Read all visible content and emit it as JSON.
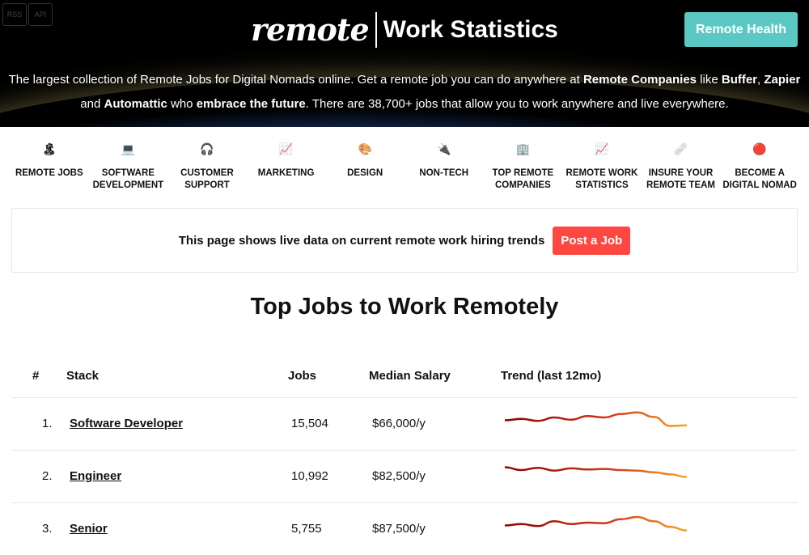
{
  "header": {
    "rss": "RSS",
    "api": "API",
    "logo": "remote",
    "title": "Work Statistics",
    "remote_health": "Remote Health",
    "tagline": [
      {
        "t": "The largest collection of Remote Jobs for Digital Nomads online. Get a remote job you can do anywhere at ",
        "b": false
      },
      {
        "t": "Remote Companies",
        "b": true
      },
      {
        "t": " like ",
        "b": false
      },
      {
        "t": "Buffer",
        "b": true
      },
      {
        "t": ", ",
        "b": false
      },
      {
        "t": "Zapier",
        "b": true
      },
      {
        "t": " and ",
        "b": false
      },
      {
        "t": "Automattic",
        "b": true
      },
      {
        "t": " who ",
        "b": false
      },
      {
        "t": "embrace the future",
        "b": true
      },
      {
        "t": ". There are 38,700+ jobs that allow you to work anywhere and live everywhere.",
        "b": false
      }
    ]
  },
  "nav": [
    {
      "icon": "🏝",
      "label": "REMOTE JOBS"
    },
    {
      "icon": "💻",
      "label": "SOFTWARE DEVELOPMENT"
    },
    {
      "icon": "🎧",
      "label": "CUSTOMER SUPPORT"
    },
    {
      "icon": "📈",
      "label": "MARKETING"
    },
    {
      "icon": "🎨",
      "label": "DESIGN"
    },
    {
      "icon": "🔌",
      "label": "NON-TECH"
    },
    {
      "icon": "🏢",
      "label": "TOP REMOTE COMPANIES"
    },
    {
      "icon": "📈",
      "label": "REMOTE WORK STATISTICS"
    },
    {
      "icon": "🩹",
      "label": "INSURE YOUR REMOTE TEAM"
    },
    {
      "icon": "🔴",
      "label": "BECOME A DIGITAL NOMAD"
    }
  ],
  "banner": {
    "text": "This page shows live data on current remote work hiring trends",
    "button": "Post a Job"
  },
  "section_title": "Top Jobs to Work Remotely",
  "table": {
    "headers": [
      "#",
      "Stack",
      "Jobs",
      "Median Salary",
      "Trend (last 12mo)"
    ],
    "rows": [
      {
        "rank": "1.",
        "stack": "Software Developer",
        "jobs": "15,504",
        "salary": "$66,000/y",
        "trend": [
          50,
          55,
          48,
          60,
          52,
          65,
          60,
          72,
          78,
          62,
          30,
          32
        ]
      },
      {
        "rank": "2.",
        "stack": "Engineer",
        "jobs": "10,992",
        "salary": "$82,500/y",
        "trend": [
          70,
          60,
          68,
          58,
          66,
          62,
          64,
          60,
          58,
          52,
          45,
          35
        ]
      },
      {
        "rank": "3.",
        "stack": "Senior",
        "jobs": "5,755",
        "salary": "$87,500/y",
        "trend": [
          50,
          55,
          48,
          65,
          55,
          60,
          58,
          72,
          80,
          65,
          45,
          32
        ]
      }
    ]
  },
  "colors": {
    "accent": "#5bc8c3",
    "post": "#ff4742",
    "trend_start": "#8b0000",
    "trend_end": "#f5a623"
  }
}
